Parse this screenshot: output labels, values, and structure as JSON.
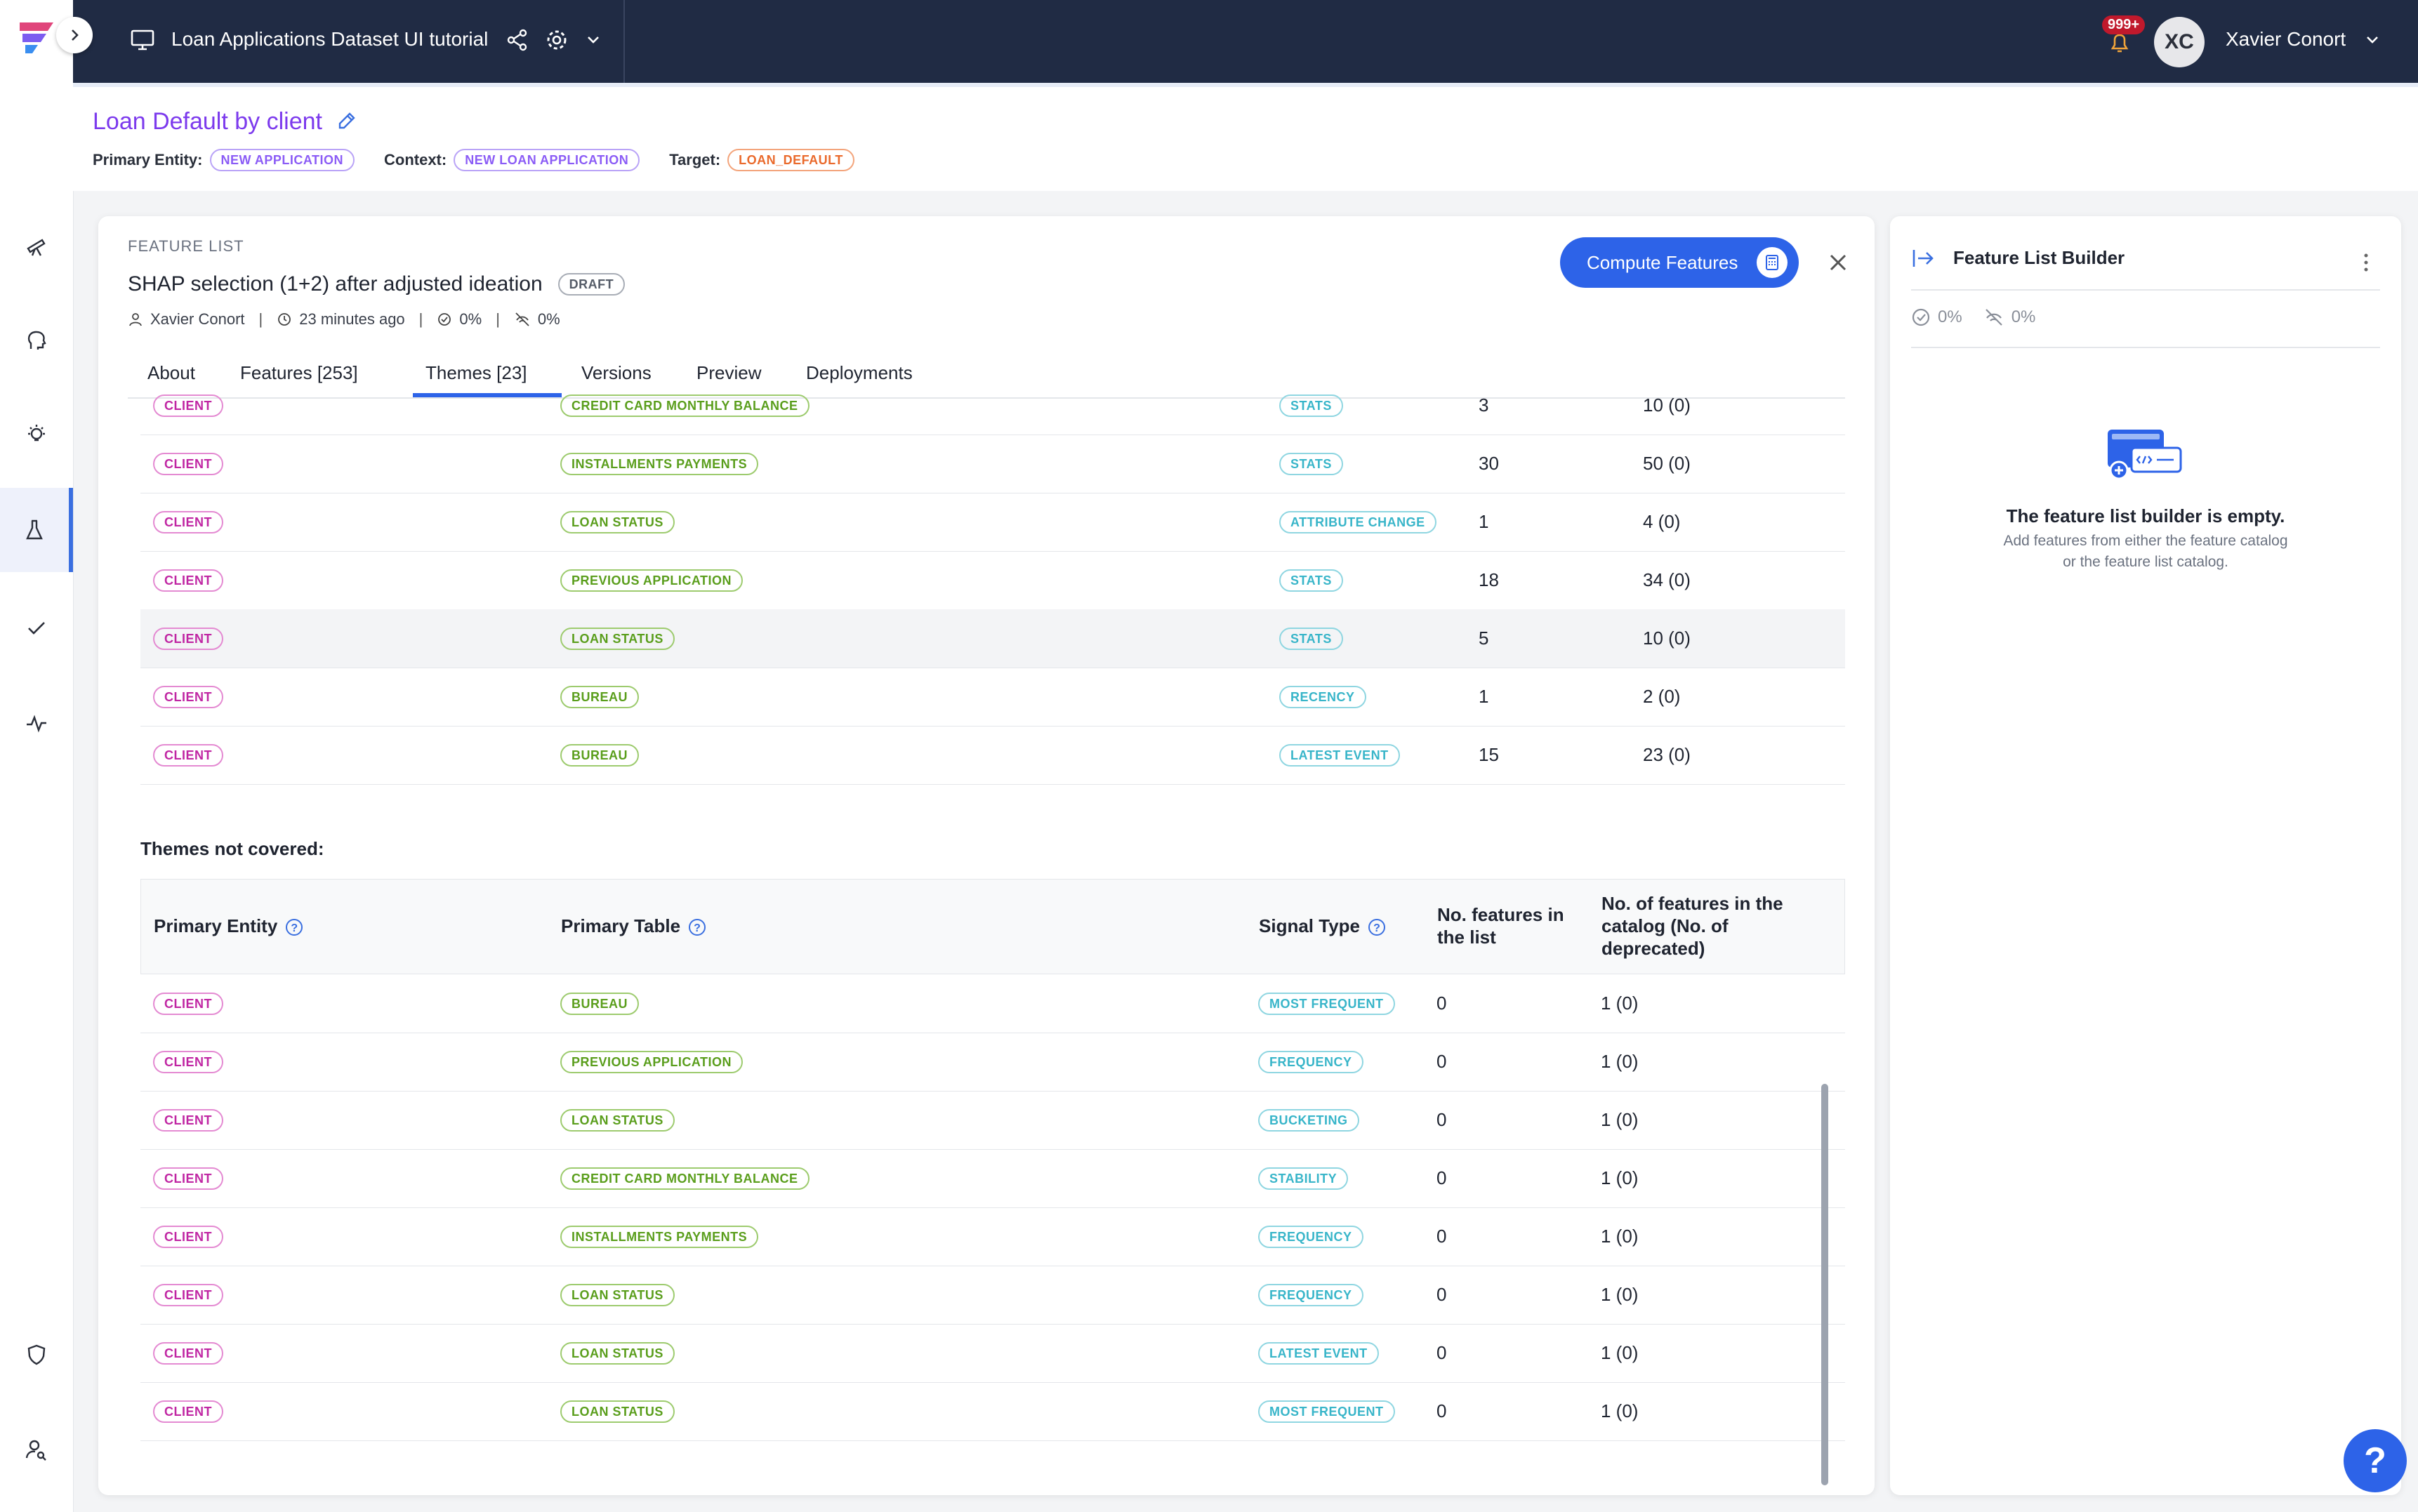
{
  "header": {
    "project_title": "Loan Applications Dataset UI tutorial",
    "notifications": "999+",
    "user_initials": "XC",
    "user_name": "Xavier Conort"
  },
  "page": {
    "title": "Loan Default by client",
    "primary_entity_label": "Primary Entity:",
    "primary_entity": "NEW APPLICATION",
    "context_label": "Context:",
    "context": "NEW LOAN APPLICATION",
    "target_label": "Target:",
    "target": "LOAN_DEFAULT"
  },
  "feature_list": {
    "section_label": "FEATURE LIST",
    "name": "SHAP selection (1+2) after adjusted ideation",
    "status": "DRAFT",
    "owner": "Xavier Conort",
    "updated": "23 minutes ago",
    "readiness": "0%",
    "offline": "0%",
    "compute_label": "Compute Features"
  },
  "tabs": [
    "About",
    "Features [253]",
    "Themes [23]",
    "Versions",
    "Preview",
    "Deployments"
  ],
  "covered_rows": [
    {
      "entity": "CLIENT",
      "table": "CREDIT CARD MONTHLY BALANCE",
      "signal": "STATS",
      "in_list": "3",
      "catalog": "10 (0)"
    },
    {
      "entity": "CLIENT",
      "table": "INSTALLMENTS PAYMENTS",
      "signal": "STATS",
      "in_list": "30",
      "catalog": "50 (0)"
    },
    {
      "entity": "CLIENT",
      "table": "LOAN STATUS",
      "signal": "ATTRIBUTE CHANGE",
      "in_list": "1",
      "catalog": "4 (0)"
    },
    {
      "entity": "CLIENT",
      "table": "PREVIOUS APPLICATION",
      "signal": "STATS",
      "in_list": "18",
      "catalog": "34 (0)"
    },
    {
      "entity": "CLIENT",
      "table": "LOAN STATUS",
      "signal": "STATS",
      "in_list": "5",
      "catalog": "10 (0)"
    },
    {
      "entity": "CLIENT",
      "table": "BUREAU",
      "signal": "RECENCY",
      "in_list": "1",
      "catalog": "2 (0)"
    },
    {
      "entity": "CLIENT",
      "table": "BUREAU",
      "signal": "LATEST EVENT",
      "in_list": "15",
      "catalog": "23 (0)"
    }
  ],
  "not_covered": {
    "title": "Themes not covered:",
    "headers": {
      "entity": "Primary Entity",
      "table": "Primary Table",
      "signal": "Signal Type",
      "in_list_1": "No. features in",
      "in_list_2": "the list",
      "catalog_1": "No. of features in the",
      "catalog_2": "catalog (No. of",
      "catalog_3": "deprecated)"
    },
    "rows": [
      {
        "entity": "CLIENT",
        "table": "BUREAU",
        "signal": "MOST FREQUENT",
        "in_list": "0",
        "catalog": "1 (0)"
      },
      {
        "entity": "CLIENT",
        "table": "PREVIOUS APPLICATION",
        "signal": "FREQUENCY",
        "in_list": "0",
        "catalog": "1 (0)"
      },
      {
        "entity": "CLIENT",
        "table": "LOAN STATUS",
        "signal": "BUCKETING",
        "in_list": "0",
        "catalog": "1 (0)"
      },
      {
        "entity": "CLIENT",
        "table": "CREDIT CARD MONTHLY BALANCE",
        "signal": "STABILITY",
        "in_list": "0",
        "catalog": "1 (0)"
      },
      {
        "entity": "CLIENT",
        "table": "INSTALLMENTS PAYMENTS",
        "signal": "FREQUENCY",
        "in_list": "0",
        "catalog": "1 (0)"
      },
      {
        "entity": "CLIENT",
        "table": "LOAN STATUS",
        "signal": "FREQUENCY",
        "in_list": "0",
        "catalog": "1 (0)"
      },
      {
        "entity": "CLIENT",
        "table": "LOAN STATUS",
        "signal": "LATEST EVENT",
        "in_list": "0",
        "catalog": "1 (0)"
      },
      {
        "entity": "CLIENT",
        "table": "LOAN STATUS",
        "signal": "MOST FREQUENT",
        "in_list": "0",
        "catalog": "1 (0)"
      }
    ]
  },
  "builder": {
    "title": "Feature List Builder",
    "readiness": "0%",
    "offline": "0%",
    "empty_title": "The feature list builder is empty.",
    "empty_line1": "Add features from either the feature catalog",
    "empty_line2": "or the feature list catalog."
  },
  "help_label": "?",
  "colors": {
    "accent": "#2d63e8",
    "header_bg": "#202b44",
    "title": "#7c3aed"
  }
}
